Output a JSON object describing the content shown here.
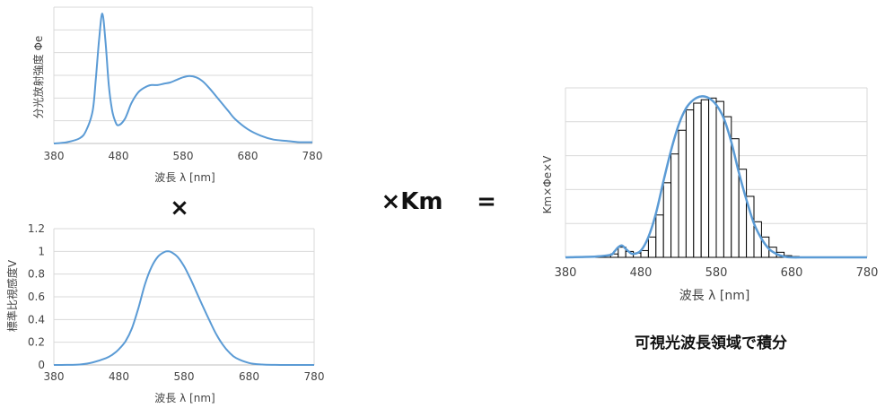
{
  "colors": {
    "line": "#5b9bd5",
    "grid": "#d9d9d9",
    "axis": "#bfbfbf",
    "bar_edge": "#000000",
    "text": "#444444",
    "operator": "#111111"
  },
  "operators": {
    "times": "×",
    "times_km": "×Km",
    "equals": "="
  },
  "caption": "可視光波長領域で積分",
  "chart_data": [
    {
      "type": "line",
      "ylabel": "分光放射強度 Φe",
      "xlabel": "波長 λ [nm]",
      "xlim": [
        380,
        780
      ],
      "x_ticks": [
        "380",
        "480",
        "580",
        "680",
        "780"
      ],
      "y_ticks": [],
      "grid": true,
      "series": [
        {
          "x": [
            380,
            400,
            420,
            430,
            440,
            445,
            450,
            455,
            460,
            465,
            470,
            475,
            480,
            490,
            500,
            510,
            520,
            530,
            540,
            550,
            560,
            570,
            580,
            590,
            600,
            610,
            620,
            630,
            640,
            650,
            660,
            680,
            700,
            720,
            740,
            760,
            780
          ],
          "y": [
            0.0,
            0.01,
            0.04,
            0.1,
            0.25,
            0.5,
            0.8,
            1.0,
            0.78,
            0.45,
            0.26,
            0.17,
            0.14,
            0.19,
            0.31,
            0.39,
            0.43,
            0.45,
            0.45,
            0.46,
            0.47,
            0.49,
            0.51,
            0.52,
            0.51,
            0.48,
            0.43,
            0.37,
            0.31,
            0.25,
            0.19,
            0.11,
            0.06,
            0.03,
            0.02,
            0.01,
            0.01
          ]
        }
      ]
    },
    {
      "type": "line",
      "ylabel": "標準比視感度V",
      "xlabel": "波長 λ [nm]",
      "xlim": [
        380,
        780
      ],
      "ylim": [
        0,
        1.2
      ],
      "x_ticks": [
        "380",
        "480",
        "580",
        "680",
        "780"
      ],
      "y_ticks": [
        "0",
        "0.2",
        "0.4",
        "0.6",
        "0.8",
        "1",
        "1.2"
      ],
      "grid": true,
      "series": [
        {
          "x": [
            380,
            400,
            420,
            440,
            460,
            470,
            480,
            490,
            500,
            510,
            520,
            530,
            540,
            550,
            555,
            560,
            570,
            580,
            590,
            600,
            610,
            620,
            630,
            640,
            650,
            660,
            680,
            700,
            720,
            740,
            760,
            780
          ],
          "y": [
            0.0,
            0.0004,
            0.004,
            0.023,
            0.06,
            0.091,
            0.139,
            0.208,
            0.323,
            0.503,
            0.71,
            0.862,
            0.954,
            0.995,
            1.0,
            0.995,
            0.952,
            0.87,
            0.757,
            0.631,
            0.503,
            0.381,
            0.265,
            0.175,
            0.107,
            0.061,
            0.017,
            0.004,
            0.001,
            0.0,
            0.0,
            0.0
          ]
        }
      ]
    },
    {
      "type": "bar",
      "ylabel": "Km×Φe×V",
      "xlabel": "波長 λ [nm]",
      "xlim": [
        380,
        780
      ],
      "x_ticks": [
        "380",
        "480",
        "580",
        "680",
        "780"
      ],
      "y_ticks": [],
      "grid": true,
      "bins_start": 380,
      "bin_width": 10,
      "bar_values": [
        0,
        0,
        0,
        0,
        0.005,
        0.01,
        0.02,
        0.06,
        0.035,
        0.025,
        0.04,
        0.12,
        0.25,
        0.44,
        0.61,
        0.75,
        0.87,
        0.91,
        0.93,
        0.94,
        0.92,
        0.83,
        0.7,
        0.52,
        0.36,
        0.21,
        0.12,
        0.06,
        0.03,
        0.01,
        0.005,
        0,
        0,
        0,
        0,
        0,
        0,
        0,
        0,
        0
      ],
      "series": [
        {
          "x": [
            380,
            420,
            440,
            445,
            450,
            455,
            460,
            465,
            470,
            480,
            490,
            500,
            510,
            520,
            530,
            540,
            550,
            560,
            570,
            580,
            590,
            600,
            610,
            620,
            630,
            640,
            650,
            660,
            670,
            680,
            700,
            740,
            780
          ],
          "y": [
            0.0,
            0.005,
            0.015,
            0.035,
            0.06,
            0.07,
            0.05,
            0.03,
            0.02,
            0.04,
            0.12,
            0.26,
            0.45,
            0.63,
            0.78,
            0.88,
            0.93,
            0.95,
            0.94,
            0.9,
            0.82,
            0.68,
            0.5,
            0.34,
            0.2,
            0.11,
            0.05,
            0.02,
            0.005,
            0.0,
            0.0,
            0.0,
            0.0
          ]
        }
      ]
    }
  ]
}
